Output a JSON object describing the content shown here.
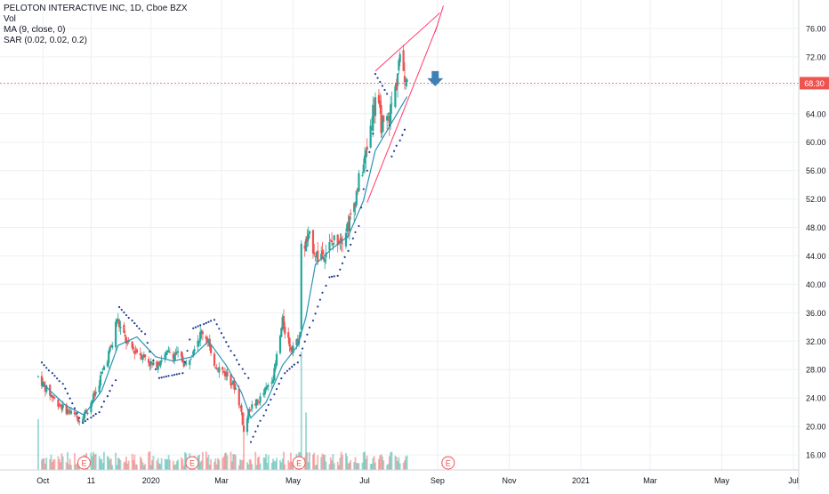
{
  "legend": {
    "title": "PELOTON INTERACTIVE INC, 1D, Cboe BZX",
    "vol": "Vol",
    "ma": "MA (9, close, 0)",
    "sar": "SAR (0.02, 0.02, 0.2)"
  },
  "last_price_label": "68.30",
  "colors": {
    "up": "#26a69a",
    "down": "#ef5350",
    "ma": "#2a93b5",
    "sar": "#1f3a93",
    "wedge": "#ff3b6b",
    "price_line": "#ef5350",
    "arrow": "#3f7fb7",
    "grid": "#eef0f3",
    "axis_text": "#131722"
  },
  "chart_data": {
    "type": "candlestick",
    "symbol": "PELOTON INTERACTIVE INC",
    "interval": "1D",
    "exchange": "Cboe BZX",
    "y_ticks": [
      "16.00",
      "20.00",
      "24.00",
      "28.00",
      "32.00",
      "36.00",
      "40.00",
      "44.00",
      "48.00",
      "52.00",
      "56.00",
      "60.00",
      "64.00",
      "68.00",
      "72.00",
      "76.00"
    ],
    "ylim": [
      11.5,
      79.0
    ],
    "x_ticks": [
      {
        "label": "Oct",
        "date": "2019-10-01"
      },
      {
        "label": "11",
        "date": "2019-11-11"
      },
      {
        "label": "2020",
        "date": "2020-01-01"
      },
      {
        "label": "Mar",
        "date": "2020-03-01"
      },
      {
        "label": "May",
        "date": "2020-05-01"
      },
      {
        "label": "Jul",
        "date": "2020-07-01"
      },
      {
        "label": "Sep",
        "date": "2020-09-01"
      },
      {
        "label": "Nov",
        "date": "2020-11-01"
      },
      {
        "label": "2021",
        "date": "2021-01-01"
      },
      {
        "label": "Mar",
        "date": "2021-03-01"
      },
      {
        "label": "May",
        "date": "2021-05-01"
      },
      {
        "label": "Jul",
        "date": "2021-07-01"
      }
    ],
    "xlim": [
      "2019-09-27",
      "2021-07-01"
    ],
    "last_price": 68.3,
    "grid": true,
    "close_path": [
      [
        "2019-09-27",
        27.0
      ],
      [
        "2019-10-04",
        25.2
      ],
      [
        "2019-10-11",
        23.8
      ],
      [
        "2019-10-18",
        22.6
      ],
      [
        "2019-10-25",
        21.9
      ],
      [
        "2019-11-01",
        21.0
      ],
      [
        "2019-11-08",
        22.4
      ],
      [
        "2019-11-15",
        24.8
      ],
      [
        "2019-11-22",
        28.4
      ],
      [
        "2019-11-29",
        31.6
      ],
      [
        "2019-12-03",
        35.2
      ],
      [
        "2019-12-06",
        33.8
      ],
      [
        "2019-12-13",
        31.2
      ],
      [
        "2019-12-20",
        30.6
      ],
      [
        "2019-12-27",
        29.8
      ],
      [
        "2020-01-03",
        28.4
      ],
      [
        "2020-01-10",
        29.6
      ],
      [
        "2020-01-17",
        30.4
      ],
      [
        "2020-01-24",
        30.0
      ],
      [
        "2020-01-31",
        28.6
      ],
      [
        "2020-02-07",
        31.6
      ],
      [
        "2020-02-14",
        33.4
      ],
      [
        "2020-02-19",
        32.0
      ],
      [
        "2020-02-21",
        29.6
      ],
      [
        "2020-02-28",
        28.2
      ],
      [
        "2020-03-06",
        27.2
      ],
      [
        "2020-03-13",
        25.4
      ],
      [
        "2020-03-18",
        22.0
      ],
      [
        "2020-03-20",
        19.2
      ],
      [
        "2020-03-25",
        22.6
      ],
      [
        "2020-04-01",
        23.4
      ],
      [
        "2020-04-08",
        25.2
      ],
      [
        "2020-04-15",
        27.6
      ],
      [
        "2020-04-17",
        29.8
      ],
      [
        "2020-04-22",
        34.6
      ],
      [
        "2020-04-29",
        31.2
      ],
      [
        "2020-05-04",
        31.6
      ],
      [
        "2020-05-07",
        33.4
      ],
      [
        "2020-05-08",
        45.0
      ],
      [
        "2020-05-15",
        46.4
      ],
      [
        "2020-05-22",
        43.8
      ],
      [
        "2020-05-29",
        44.8
      ],
      [
        "2020-06-05",
        46.2
      ],
      [
        "2020-06-12",
        46.8
      ],
      [
        "2020-06-19",
        49.2
      ],
      [
        "2020-06-26",
        54.4
      ],
      [
        "2020-07-01",
        57.4
      ],
      [
        "2020-07-06",
        62.4
      ],
      [
        "2020-07-10",
        66.4
      ],
      [
        "2020-07-14",
        63.4
      ],
      [
        "2020-07-17",
        61.6
      ],
      [
        "2020-07-22",
        63.8
      ],
      [
        "2020-07-27",
        67.4
      ],
      [
        "2020-07-30",
        71.2
      ],
      [
        "2020-08-04",
        70.0
      ],
      [
        "2020-08-06",
        68.3
      ]
    ],
    "ma": [
      [
        "2019-10-01",
        26.0
      ],
      [
        "2019-10-20",
        23.0
      ],
      [
        "2019-11-05",
        21.6
      ],
      [
        "2019-11-20",
        25.0
      ],
      [
        "2019-12-04",
        31.4
      ],
      [
        "2019-12-20",
        32.6
      ],
      [
        "2020-01-05",
        29.8
      ],
      [
        "2020-01-20",
        29.2
      ],
      [
        "2020-02-05",
        29.8
      ],
      [
        "2020-02-19",
        32.0
      ],
      [
        "2020-03-05",
        28.6
      ],
      [
        "2020-03-18",
        24.8
      ],
      [
        "2020-03-26",
        21.2
      ],
      [
        "2020-04-08",
        23.4
      ],
      [
        "2020-04-22",
        28.6
      ],
      [
        "2020-05-05",
        31.4
      ],
      [
        "2020-05-12",
        35.4
      ],
      [
        "2020-05-20",
        42.8
      ],
      [
        "2020-06-03",
        45.0
      ],
      [
        "2020-06-17",
        46.8
      ],
      [
        "2020-06-30",
        51.8
      ],
      [
        "2020-07-10",
        58.8
      ],
      [
        "2020-07-22",
        62.2
      ],
      [
        "2020-08-06",
        66.4
      ]
    ],
    "sar_dots": [
      [
        "2019-09-30",
        29.0
      ],
      [
        "2019-10-18",
        26.0
      ],
      [
        "2019-11-04",
        20.5
      ],
      [
        "2019-11-18",
        22.0
      ],
      [
        "2019-12-02",
        26.5
      ],
      [
        "2019-12-05",
        36.8
      ],
      [
        "2019-12-27",
        33.0
      ],
      [
        "2020-01-08",
        26.8
      ],
      [
        "2020-01-28",
        27.5
      ],
      [
        "2020-02-06",
        33.8
      ],
      [
        "2020-02-24",
        35.0
      ],
      [
        "2020-03-12",
        30.0
      ],
      [
        "2020-03-24",
        26.8
      ],
      [
        "2020-03-26",
        17.8
      ],
      [
        "2020-04-24",
        27.5
      ],
      [
        "2020-05-05",
        29.0
      ],
      [
        "2020-05-29",
        39.8
      ],
      [
        "2020-06-01",
        41.0
      ],
      [
        "2020-06-08",
        41.2
      ],
      [
        "2020-06-26",
        48.2
      ],
      [
        "2020-07-08",
        61.2
      ],
      [
        "2020-07-10",
        69.6
      ],
      [
        "2020-07-20",
        66.8
      ],
      [
        "2020-07-24",
        58.0
      ],
      [
        "2020-08-07",
        62.5
      ]
    ],
    "wedge": {
      "upper": [
        [
          "2020-07-10",
          70.0
        ],
        [
          "2020-09-03",
          78.2
        ]
      ],
      "lower": [
        [
          "2020-07-03",
          51.5
        ],
        [
          "2020-09-01",
          76.5
        ]
      ],
      "top": [
        [
          "2020-08-30",
          75.5
        ],
        [
          "2020-09-06",
          79.2
        ]
      ]
    },
    "earnings_markers": [
      {
        "label": "E",
        "date": "2019-11-05"
      },
      {
        "label": "E",
        "date": "2020-02-05"
      },
      {
        "label": "E",
        "date": "2020-05-06"
      },
      {
        "label": "E",
        "date": "2020-09-10"
      }
    ],
    "down_arrow_date": "2020-08-30",
    "down_arrow_price": 69.0
  }
}
